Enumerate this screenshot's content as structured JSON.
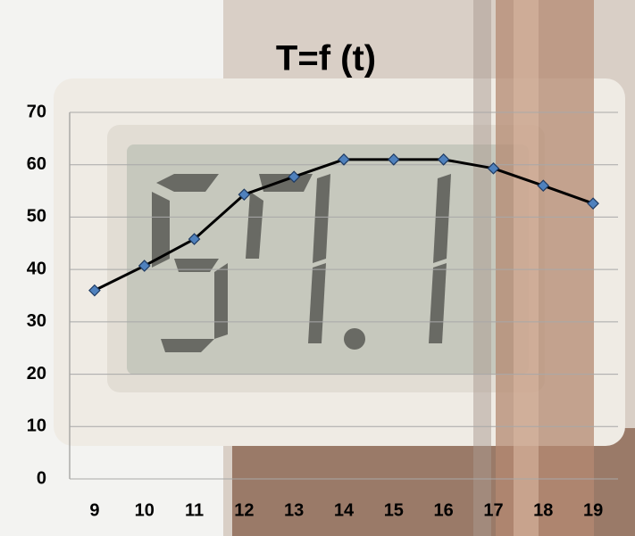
{
  "chart_data": {
    "type": "line",
    "title": "T=f (t)",
    "categories": [
      "9",
      "10",
      "11",
      "12",
      "13",
      "14",
      "15",
      "16",
      "17",
      "18",
      "19"
    ],
    "values": [
      36,
      40.7,
      45.8,
      54.3,
      57.7,
      61,
      61,
      61,
      59.3,
      56,
      52.6
    ],
    "color": "#000000",
    "marker_color": "#4f81bd",
    "ylim": [
      0,
      70
    ],
    "yticks": [
      0,
      10,
      20,
      30,
      40,
      50,
      60,
      70
    ],
    "grid": true
  }
}
